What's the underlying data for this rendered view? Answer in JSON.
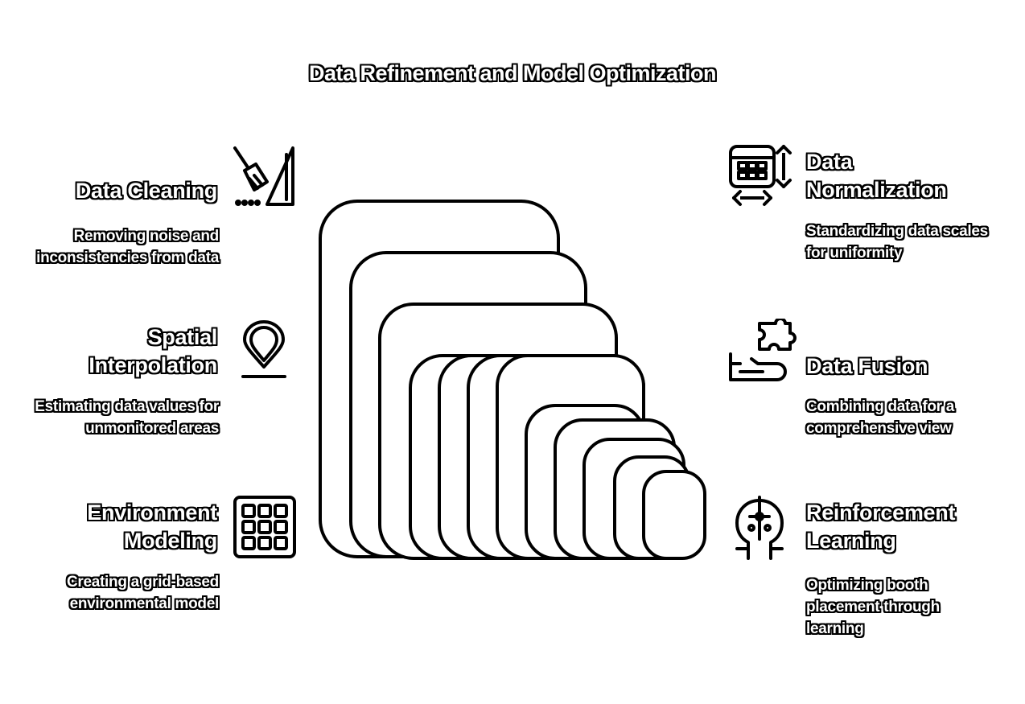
{
  "title": "Data Refinement and Model Optimization",
  "items": [
    {
      "heading": "Data Cleaning",
      "description": "Removing noise and inconsistencies from data",
      "icon": "broom-icon"
    },
    {
      "heading": "Spatial Interpolation",
      "description": "Estimating data values for unmonitored areas",
      "icon": "map-pin-icon"
    },
    {
      "heading": "Environment Modeling",
      "description": "Creating a grid-based environmental model",
      "icon": "grid-icon"
    },
    {
      "heading": "Data Normalization",
      "description": "Standardizing data scales for uniformity",
      "icon": "table-resize-icon"
    },
    {
      "heading": "Data Fusion",
      "description": "Combining data for a comprehensive view",
      "icon": "puzzle-hand-icon"
    },
    {
      "heading": "Reinforcement Learning",
      "description": "Optimizing booth placement through learning",
      "icon": "brain-circuit-icon"
    }
  ],
  "colors": {
    "fill": "#ffffff",
    "stroke": "#000000"
  }
}
